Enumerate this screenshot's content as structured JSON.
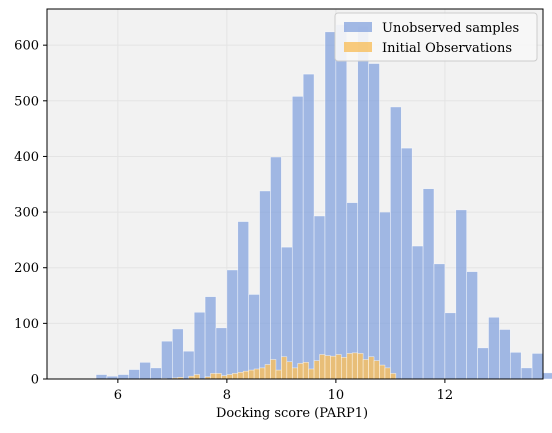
{
  "chart_data": {
    "type": "histogram",
    "title": "",
    "xlabel": "Docking score (PARP1)",
    "ylabel": "",
    "xlim": [
      4.7,
      13.8
    ],
    "ylim": [
      0,
      665
    ],
    "xticks": [
      6,
      8,
      10,
      12
    ],
    "yticks": [
      0,
      100,
      200,
      300,
      400,
      500,
      600
    ],
    "grid": true,
    "legend_position": "top-right",
    "series": [
      {
        "name": "Unobserved samples",
        "color": "#7f9fdc",
        "bin_width": 0.2,
        "bins": [
          [
            5.6,
            8
          ],
          [
            5.8,
            5
          ],
          [
            6.0,
            8
          ],
          [
            6.2,
            17
          ],
          [
            6.4,
            30
          ],
          [
            6.6,
            20
          ],
          [
            6.8,
            68
          ],
          [
            7.0,
            90
          ],
          [
            7.2,
            50
          ],
          [
            7.4,
            120
          ],
          [
            7.6,
            148
          ],
          [
            7.8,
            92
          ],
          [
            8.0,
            196
          ],
          [
            8.2,
            283
          ],
          [
            8.4,
            152
          ],
          [
            8.6,
            338
          ],
          [
            8.8,
            399
          ],
          [
            9.0,
            237
          ],
          [
            9.2,
            508
          ],
          [
            9.4,
            548
          ],
          [
            9.6,
            293
          ],
          [
            9.8,
            624
          ],
          [
            10.0,
            637
          ],
          [
            10.2,
            317
          ],
          [
            10.4,
            634
          ],
          [
            10.6,
            567
          ],
          [
            10.8,
            300
          ],
          [
            11.0,
            489
          ],
          [
            11.2,
            415
          ],
          [
            11.4,
            239
          ],
          [
            11.6,
            342
          ],
          [
            11.8,
            207
          ],
          [
            12.0,
            119
          ],
          [
            12.2,
            304
          ],
          [
            12.4,
            193
          ],
          [
            12.6,
            56
          ],
          [
            12.8,
            111
          ],
          [
            13.0,
            89
          ],
          [
            13.2,
            48
          ],
          [
            13.4,
            20
          ],
          [
            13.6,
            46
          ],
          [
            13.8,
            11
          ]
        ]
      },
      {
        "name": "Initial Observations",
        "color": "#f8c060",
        "bin_width": 0.1,
        "bins": [
          [
            6.8,
            1
          ],
          [
            7.0,
            2
          ],
          [
            7.1,
            3
          ],
          [
            7.3,
            5
          ],
          [
            7.4,
            8
          ],
          [
            7.6,
            4
          ],
          [
            7.7,
            10
          ],
          [
            7.8,
            10
          ],
          [
            7.9,
            6
          ],
          [
            8.0,
            8
          ],
          [
            8.1,
            10
          ],
          [
            8.2,
            12
          ],
          [
            8.3,
            14
          ],
          [
            8.4,
            16
          ],
          [
            8.5,
            18
          ],
          [
            8.6,
            20
          ],
          [
            8.7,
            26
          ],
          [
            8.8,
            35
          ],
          [
            8.9,
            16
          ],
          [
            9.0,
            40
          ],
          [
            9.1,
            31
          ],
          [
            9.2,
            20
          ],
          [
            9.3,
            28
          ],
          [
            9.4,
            30
          ],
          [
            9.5,
            18
          ],
          [
            9.6,
            33
          ],
          [
            9.7,
            44
          ],
          [
            9.8,
            42
          ],
          [
            9.9,
            41
          ],
          [
            10.0,
            44
          ],
          [
            10.1,
            39
          ],
          [
            10.2,
            46
          ],
          [
            10.3,
            47
          ],
          [
            10.4,
            46
          ],
          [
            10.5,
            35
          ],
          [
            10.6,
            40
          ],
          [
            10.7,
            33
          ],
          [
            10.8,
            25
          ],
          [
            10.9,
            20
          ],
          [
            11.0,
            10
          ]
        ]
      }
    ]
  }
}
